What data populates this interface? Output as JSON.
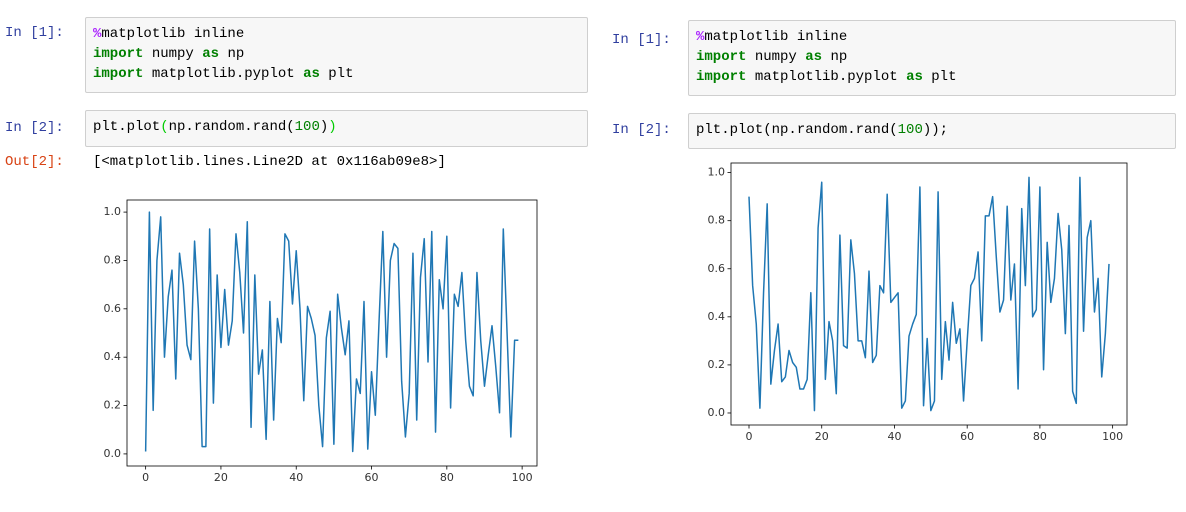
{
  "notebooks": [
    {
      "cells": [
        {
          "prompt": "In [1]:",
          "code": [
            [
              "%",
              "matplotlib inline"
            ],
            [
              "import",
              " numpy ",
              "as",
              " np"
            ],
            [
              "import",
              " matplotlib.pyplot ",
              "as",
              " plt"
            ]
          ]
        },
        {
          "prompt": "In [2]:",
          "code": [
            [
              "plt.plot",
              "(",
              "np.random.rand(",
              "100",
              ")",
              ")"
            ]
          ]
        }
      ],
      "output": {
        "prompt": "Out[2]:",
        "text": "[<matplotlib.lines.Line2D at 0x116ab09e8>]"
      }
    },
    {
      "cells": [
        {
          "prompt": "In [1]:",
          "code": [
            [
              "%",
              "matplotlib inline"
            ],
            [
              "import",
              " numpy ",
              "as",
              " np"
            ],
            [
              "import",
              " matplotlib.pyplot ",
              "as",
              " plt"
            ]
          ]
        },
        {
          "prompt": "In [2]:",
          "code": [
            [
              "plt.plot(np.random.rand(",
              "100",
              "));"
            ]
          ]
        }
      ]
    }
  ],
  "chart_data": [
    {
      "type": "line",
      "x": [
        0,
        1,
        2,
        3,
        4,
        5,
        6,
        7,
        8,
        9,
        10,
        11,
        12,
        13,
        14,
        15,
        16,
        17,
        18,
        19,
        20,
        21,
        22,
        23,
        24,
        25,
        26,
        27,
        28,
        29,
        30,
        31,
        32,
        33,
        34,
        35,
        36,
        37,
        38,
        39,
        40,
        41,
        42,
        43,
        44,
        45,
        46,
        47,
        48,
        49,
        50,
        51,
        52,
        53,
        54,
        55,
        56,
        57,
        58,
        59,
        60,
        61,
        62,
        63,
        64,
        65,
        66,
        67,
        68,
        69,
        70,
        71,
        72,
        73,
        74,
        75,
        76,
        77,
        78,
        79,
        80,
        81,
        82,
        83,
        84,
        85,
        86,
        87,
        88,
        89,
        90,
        91,
        92,
        93,
        94,
        95,
        96,
        97,
        98,
        99
      ],
      "series": [
        {
          "color": "#1f77b4",
          "values": [
            0.01,
            1.0,
            0.18,
            0.8,
            0.98,
            0.4,
            0.65,
            0.76,
            0.31,
            0.83,
            0.7,
            0.45,
            0.39,
            0.88,
            0.6,
            0.03,
            0.03,
            0.93,
            0.21,
            0.74,
            0.44,
            0.68,
            0.45,
            0.55,
            0.91,
            0.75,
            0.5,
            0.96,
            0.11,
            0.74,
            0.33,
            0.43,
            0.06,
            0.63,
            0.14,
            0.56,
            0.46,
            0.91,
            0.88,
            0.62,
            0.84,
            0.6,
            0.22,
            0.61,
            0.56,
            0.49,
            0.2,
            0.03,
            0.48,
            0.59,
            0.04,
            0.66,
            0.52,
            0.41,
            0.55,
            0.01,
            0.31,
            0.25,
            0.63,
            0.02,
            0.34,
            0.16,
            0.55,
            0.92,
            0.4,
            0.8,
            0.87,
            0.85,
            0.3,
            0.07,
            0.25,
            0.83,
            0.14,
            0.73,
            0.89,
            0.38,
            0.92,
            0.09,
            0.72,
            0.6,
            0.9,
            0.19,
            0.66,
            0.61,
            0.75,
            0.47,
            0.28,
            0.24,
            0.75,
            0.47,
            0.28,
            0.41,
            0.53,
            0.36,
            0.17,
            0.93,
            0.5,
            0.07,
            0.47,
            0.47
          ]
        }
      ],
      "xlim": [
        -4.95,
        103.95
      ],
      "ylim": [
        -0.05,
        1.05
      ],
      "xticks": [
        0,
        20,
        40,
        60,
        80,
        100
      ],
      "yticks": [
        {
          "value": 0,
          "label": "0.0"
        },
        0.2,
        0.4,
        0.6,
        0.8,
        {
          "value": 1,
          "label": "1.0"
        }
      ]
    },
    {
      "type": "line",
      "x": [
        0,
        1,
        2,
        3,
        4,
        5,
        6,
        7,
        8,
        9,
        10,
        11,
        12,
        13,
        14,
        15,
        16,
        17,
        18,
        19,
        20,
        21,
        22,
        23,
        24,
        25,
        26,
        27,
        28,
        29,
        30,
        31,
        32,
        33,
        34,
        35,
        36,
        37,
        38,
        39,
        40,
        41,
        42,
        43,
        44,
        45,
        46,
        47,
        48,
        49,
        50,
        51,
        52,
        53,
        54,
        55,
        56,
        57,
        58,
        59,
        60,
        61,
        62,
        63,
        64,
        65,
        66,
        67,
        68,
        69,
        70,
        71,
        72,
        73,
        74,
        75,
        76,
        77,
        78,
        79,
        80,
        81,
        82,
        83,
        84,
        85,
        86,
        87,
        88,
        89,
        90,
        91,
        92,
        93,
        94,
        95,
        96,
        97,
        98,
        99
      ],
      "series": [
        {
          "color": "#1f77b4",
          "values": [
            0.9,
            0.53,
            0.37,
            0.02,
            0.5,
            0.87,
            0.12,
            0.26,
            0.37,
            0.13,
            0.15,
            0.26,
            0.21,
            0.19,
            0.1,
            0.1,
            0.14,
            0.5,
            0.01,
            0.77,
            0.96,
            0.14,
            0.38,
            0.3,
            0.08,
            0.74,
            0.28,
            0.27,
            0.72,
            0.58,
            0.3,
            0.3,
            0.23,
            0.59,
            0.21,
            0.24,
            0.53,
            0.5,
            0.91,
            0.46,
            0.48,
            0.5,
            0.02,
            0.05,
            0.32,
            0.37,
            0.41,
            0.94,
            0.03,
            0.31,
            0.01,
            0.05,
            0.92,
            0.14,
            0.38,
            0.22,
            0.46,
            0.29,
            0.35,
            0.05,
            0.3,
            0.53,
            0.56,
            0.67,
            0.3,
            0.82,
            0.82,
            0.9,
            0.65,
            0.42,
            0.47,
            0.86,
            0.47,
            0.62,
            0.1,
            0.85,
            0.53,
            0.98,
            0.4,
            0.43,
            0.94,
            0.18,
            0.71,
            0.46,
            0.56,
            0.83,
            0.68,
            0.33,
            0.78,
            0.09,
            0.04,
            0.98,
            0.34,
            0.73,
            0.8,
            0.42,
            0.56,
            0.15,
            0.33,
            0.62
          ]
        }
      ],
      "xlim": [
        -4.95,
        103.95
      ],
      "ylim": [
        -0.05,
        1.04
      ],
      "xticks": [
        0,
        20,
        40,
        60,
        80,
        100
      ],
      "yticks": [
        {
          "value": 0,
          "label": "0.0"
        },
        0.2,
        0.4,
        0.6,
        0.8,
        {
          "value": 1,
          "label": "1.0"
        }
      ]
    }
  ]
}
